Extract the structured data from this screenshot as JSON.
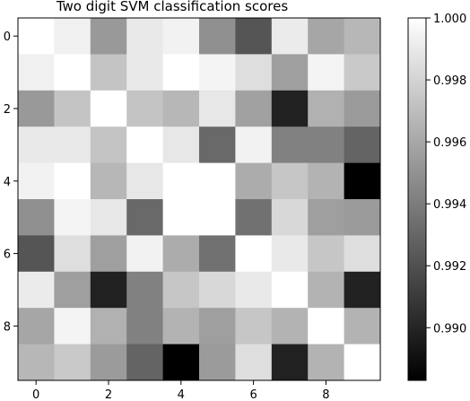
{
  "chart_data": {
    "type": "heatmap",
    "title": "Two digit SVM classification scores",
    "xlabel": "",
    "ylabel": "",
    "x_ticks": [
      "0",
      "2",
      "4",
      "6",
      "8"
    ],
    "y_ticks": [
      "0",
      "2",
      "4",
      "6",
      "8"
    ],
    "colormap": "gray",
    "vmin": 0.9883,
    "vmax": 1.0,
    "colorbar_ticks": [
      "1.000",
      "0.998",
      "0.996",
      "0.994",
      "0.992",
      "0.990"
    ],
    "colorbar_tick_values": [
      1.0,
      0.998,
      0.996,
      0.994,
      0.992,
      0.99
    ],
    "grid": false,
    "matrix": [
      [
        1.0,
        0.9993,
        0.9953,
        0.999,
        0.9994,
        0.9949,
        0.9922,
        0.9991,
        0.9959,
        0.9967
      ],
      [
        0.9993,
        1.0,
        0.9973,
        0.999,
        1.0,
        0.9995,
        0.9985,
        0.9956,
        0.9995,
        0.9975
      ],
      [
        0.9953,
        0.9973,
        1.0,
        0.9973,
        0.9967,
        0.9989,
        0.9957,
        0.9898,
        0.9964,
        0.9954
      ],
      [
        0.999,
        0.999,
        0.9973,
        1.0,
        0.9989,
        0.9931,
        0.9994,
        0.9942,
        0.9942,
        0.9929
      ],
      [
        0.9994,
        1.0,
        0.9967,
        0.9989,
        1.0,
        1.0,
        0.9962,
        0.9974,
        0.9965,
        0.9883
      ],
      [
        0.9949,
        0.9995,
        0.9989,
        0.9931,
        1.0,
        1.0,
        0.9935,
        0.9982,
        0.9956,
        0.9954
      ],
      [
        0.9922,
        0.9985,
        0.9956,
        0.9994,
        0.9962,
        0.9935,
        1.0,
        0.999,
        0.9974,
        0.9985
      ],
      [
        0.9991,
        0.9956,
        0.9898,
        0.9942,
        0.9974,
        0.9982,
        0.999,
        1.0,
        0.9965,
        0.9898
      ],
      [
        0.9959,
        0.9995,
        0.9964,
        0.9942,
        0.9965,
        0.9956,
        0.9974,
        0.9965,
        1.0,
        0.9965
      ],
      [
        0.9967,
        0.9975,
        0.9954,
        0.9929,
        0.9883,
        0.9954,
        0.9985,
        0.9898,
        0.9965,
        1.0
      ]
    ]
  }
}
